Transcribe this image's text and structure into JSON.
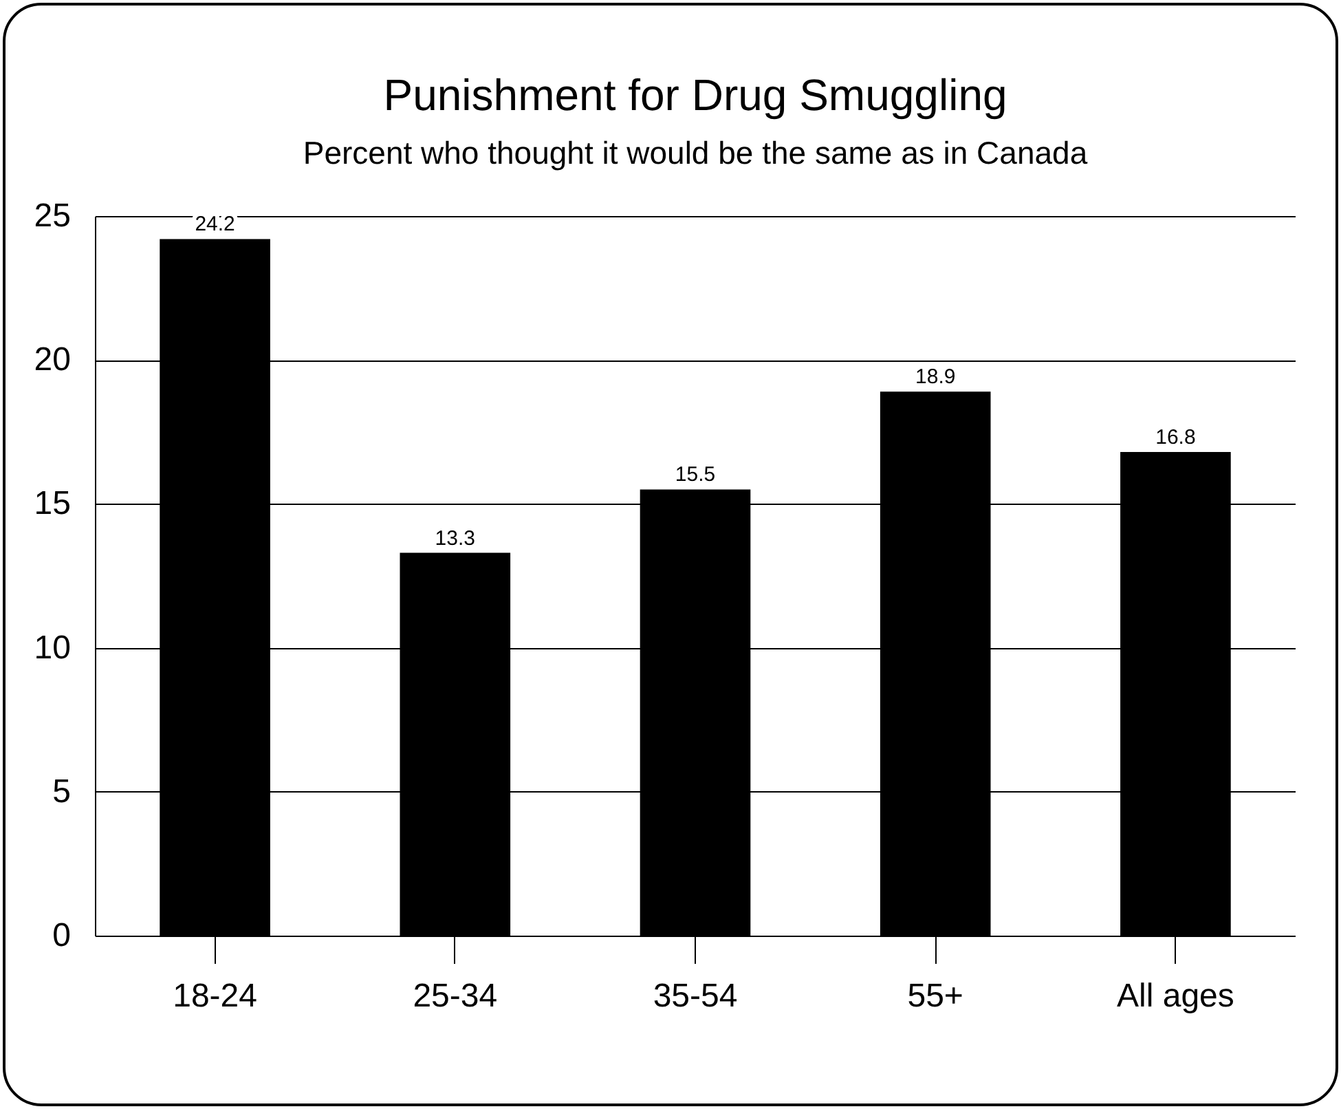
{
  "chart_data": {
    "type": "bar",
    "title": "Punishment for Drug Smuggling",
    "subtitle": "Percent who thought it would be the same as in Canada",
    "categories": [
      "18-24",
      "25-34",
      "35-54",
      "55+",
      "All ages"
    ],
    "values": [
      24.2,
      13.3,
      15.5,
      18.9,
      16.8
    ],
    "color": "#000000",
    "ylim": [
      0,
      25
    ],
    "yticks": [
      0,
      5,
      10,
      15,
      20,
      25
    ],
    "grid": "y",
    "data_labels": true
  }
}
